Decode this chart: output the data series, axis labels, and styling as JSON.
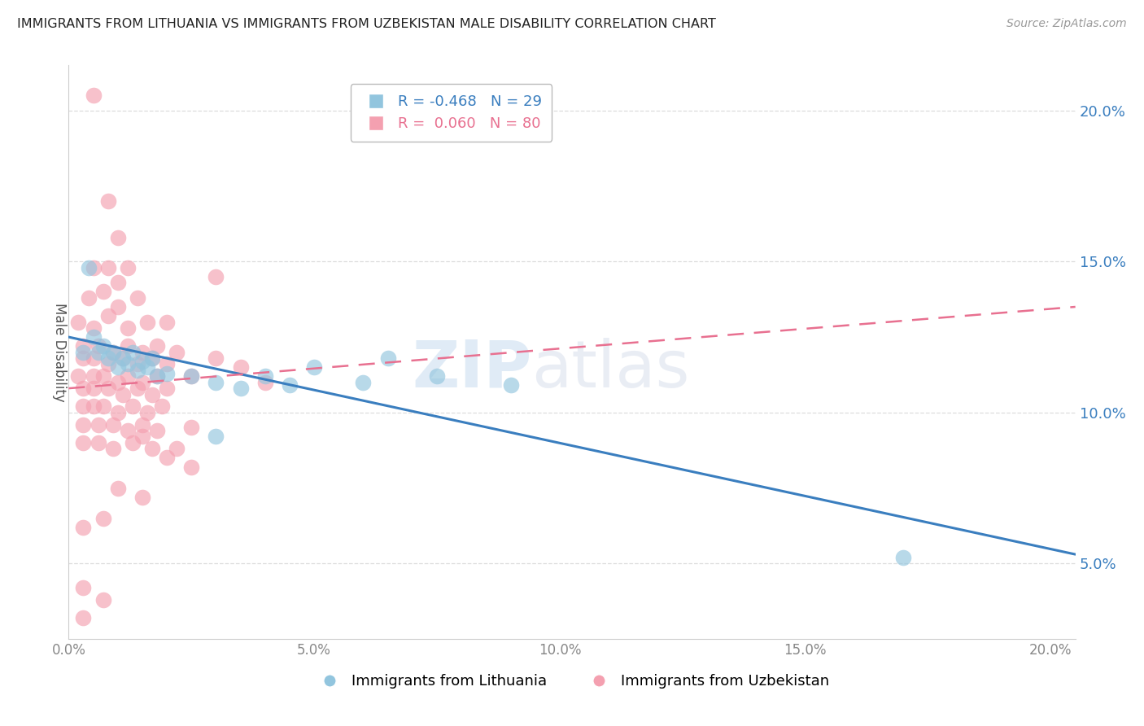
{
  "title": "IMMIGRANTS FROM LITHUANIA VS IMMIGRANTS FROM UZBEKISTAN MALE DISABILITY CORRELATION CHART",
  "source": "Source: ZipAtlas.com",
  "ylabel": "Male Disability",
  "legend_label_1": "Immigrants from Lithuania",
  "legend_label_2": "Immigrants from Uzbekistan",
  "R1": -0.468,
  "N1": 29,
  "R2": 0.06,
  "N2": 80,
  "color1": "#92C5DE",
  "color2": "#F4A0B0",
  "trend_color1": "#3A7EBF",
  "trend_color2": "#E87090",
  "xlim": [
    0.0,
    0.205
  ],
  "ylim": [
    0.025,
    0.215
  ],
  "x_ticks": [
    0.0,
    0.05,
    0.1,
    0.15,
    0.2
  ],
  "y_ticks_right": [
    0.05,
    0.1,
    0.15,
    0.2
  ],
  "background_color": "#ffffff",
  "watermark_zip": "ZIP",
  "watermark_atlas": "atlas",
  "lith_trend": [
    0.0,
    0.205,
    0.125,
    0.053
  ],
  "uzb_trend": [
    0.0,
    0.205,
    0.108,
    0.135
  ],
  "lithuania_points": [
    [
      0.003,
      0.12
    ],
    [
      0.004,
      0.148
    ],
    [
      0.005,
      0.125
    ],
    [
      0.006,
      0.12
    ],
    [
      0.007,
      0.122
    ],
    [
      0.008,
      0.118
    ],
    [
      0.009,
      0.12
    ],
    [
      0.01,
      0.115
    ],
    [
      0.011,
      0.118
    ],
    [
      0.012,
      0.116
    ],
    [
      0.013,
      0.12
    ],
    [
      0.014,
      0.114
    ],
    [
      0.015,
      0.117
    ],
    [
      0.016,
      0.115
    ],
    [
      0.017,
      0.118
    ],
    [
      0.018,
      0.112
    ],
    [
      0.02,
      0.113
    ],
    [
      0.025,
      0.112
    ],
    [
      0.03,
      0.11
    ],
    [
      0.035,
      0.108
    ],
    [
      0.04,
      0.112
    ],
    [
      0.045,
      0.109
    ],
    [
      0.05,
      0.115
    ],
    [
      0.06,
      0.11
    ],
    [
      0.065,
      0.118
    ],
    [
      0.075,
      0.112
    ],
    [
      0.09,
      0.109
    ],
    [
      0.17,
      0.052
    ],
    [
      0.03,
      0.092
    ]
  ],
  "uzbekistan_points": [
    [
      0.005,
      0.205
    ],
    [
      0.008,
      0.17
    ],
    [
      0.01,
      0.158
    ],
    [
      0.005,
      0.148
    ],
    [
      0.008,
      0.148
    ],
    [
      0.01,
      0.143
    ],
    [
      0.012,
      0.148
    ],
    [
      0.004,
      0.138
    ],
    [
      0.007,
      0.14
    ],
    [
      0.01,
      0.135
    ],
    [
      0.014,
      0.138
    ],
    [
      0.002,
      0.13
    ],
    [
      0.005,
      0.128
    ],
    [
      0.008,
      0.132
    ],
    [
      0.012,
      0.128
    ],
    [
      0.016,
      0.13
    ],
    [
      0.02,
      0.13
    ],
    [
      0.03,
      0.145
    ],
    [
      0.003,
      0.122
    ],
    [
      0.006,
      0.122
    ],
    [
      0.009,
      0.12
    ],
    [
      0.012,
      0.122
    ],
    [
      0.015,
      0.12
    ],
    [
      0.018,
      0.122
    ],
    [
      0.022,
      0.12
    ],
    [
      0.003,
      0.118
    ],
    [
      0.005,
      0.118
    ],
    [
      0.008,
      0.116
    ],
    [
      0.011,
      0.118
    ],
    [
      0.014,
      0.116
    ],
    [
      0.017,
      0.118
    ],
    [
      0.02,
      0.116
    ],
    [
      0.002,
      0.112
    ],
    [
      0.005,
      0.112
    ],
    [
      0.007,
      0.112
    ],
    [
      0.01,
      0.11
    ],
    [
      0.012,
      0.112
    ],
    [
      0.015,
      0.11
    ],
    [
      0.018,
      0.112
    ],
    [
      0.025,
      0.112
    ],
    [
      0.03,
      0.118
    ],
    [
      0.003,
      0.108
    ],
    [
      0.005,
      0.108
    ],
    [
      0.008,
      0.108
    ],
    [
      0.011,
      0.106
    ],
    [
      0.014,
      0.108
    ],
    [
      0.017,
      0.106
    ],
    [
      0.02,
      0.108
    ],
    [
      0.003,
      0.102
    ],
    [
      0.005,
      0.102
    ],
    [
      0.007,
      0.102
    ],
    [
      0.01,
      0.1
    ],
    [
      0.013,
      0.102
    ],
    [
      0.016,
      0.1
    ],
    [
      0.019,
      0.102
    ],
    [
      0.04,
      0.11
    ],
    [
      0.003,
      0.096
    ],
    [
      0.006,
      0.096
    ],
    [
      0.009,
      0.096
    ],
    [
      0.012,
      0.094
    ],
    [
      0.015,
      0.096
    ],
    [
      0.018,
      0.094
    ],
    [
      0.003,
      0.09
    ],
    [
      0.006,
      0.09
    ],
    [
      0.009,
      0.088
    ],
    [
      0.013,
      0.09
    ],
    [
      0.017,
      0.088
    ],
    [
      0.022,
      0.088
    ],
    [
      0.025,
      0.082
    ],
    [
      0.003,
      0.062
    ],
    [
      0.007,
      0.065
    ],
    [
      0.003,
      0.042
    ],
    [
      0.007,
      0.038
    ],
    [
      0.003,
      0.032
    ],
    [
      0.02,
      0.085
    ],
    [
      0.035,
      0.115
    ],
    [
      0.015,
      0.092
    ],
    [
      0.025,
      0.095
    ],
    [
      0.01,
      0.075
    ],
    [
      0.015,
      0.072
    ]
  ]
}
